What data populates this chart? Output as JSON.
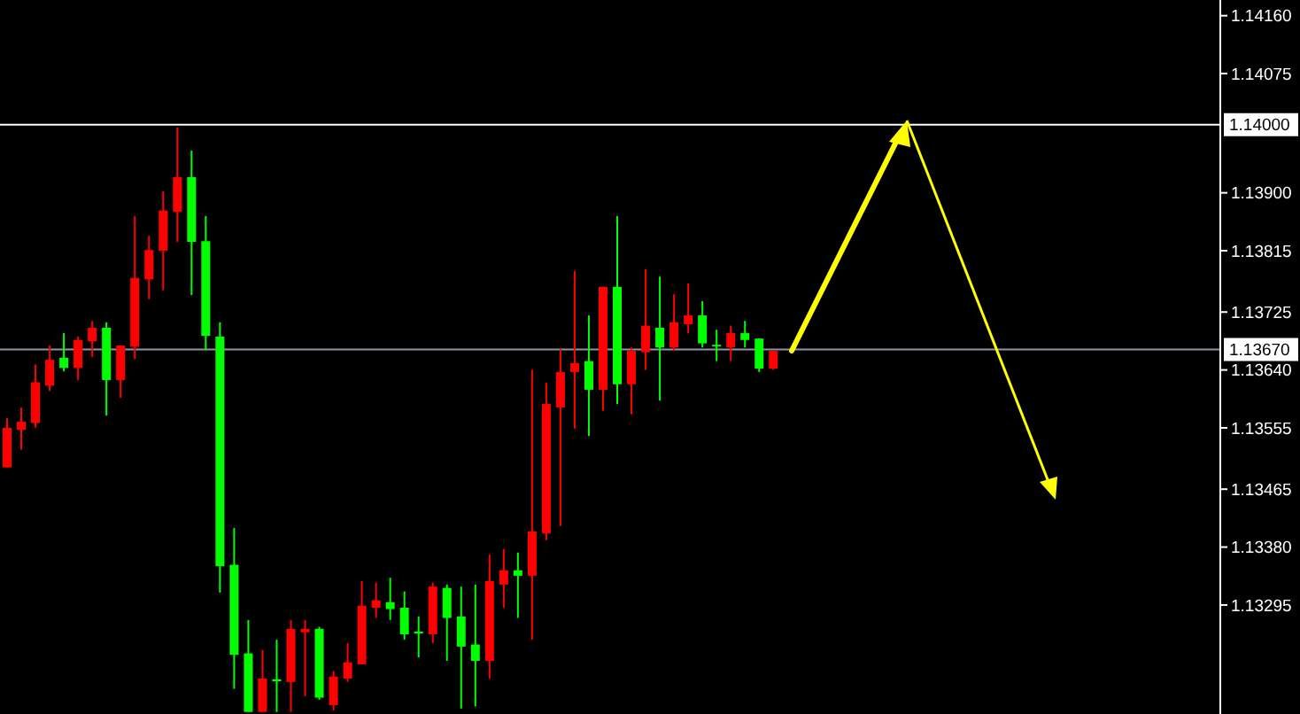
{
  "chart_data": {
    "type": "candlestick",
    "categories": [
      null,
      null,
      null,
      null,
      null,
      null,
      null,
      null,
      null,
      null,
      null,
      null,
      null,
      null,
      null,
      null,
      null,
      null,
      null,
      null,
      null,
      null,
      null,
      null,
      null,
      null,
      null,
      null,
      null,
      null,
      null,
      null,
      null,
      null,
      null,
      null,
      null,
      null,
      null,
      null,
      null,
      null,
      null,
      null,
      null,
      null,
      null,
      null,
      null,
      null,
      null,
      null,
      null,
      null,
      null,
      null,
      null,
      null,
      null,
      null,
      null,
      null,
      null,
      null,
      null,
      null,
      null,
      null,
      null,
      null,
      null,
      null,
      null,
      null,
      null,
      null,
      null,
      null,
      null,
      null,
      null,
      null,
      null,
      null,
      null,
      null
    ],
    "ohlc": [
      [
        1.13497,
        1.13569,
        1.13497,
        1.13555
      ],
      [
        1.13552,
        1.13585,
        1.13523,
        1.13564
      ],
      [
        1.13562,
        1.13648,
        1.13555,
        1.13622
      ],
      [
        1.13617,
        1.13676,
        1.13609,
        1.13655
      ],
      [
        1.13658,
        1.13694,
        1.13638,
        1.13643
      ],
      [
        1.13643,
        1.13689,
        1.13625,
        1.13684
      ],
      [
        1.13682,
        1.13712,
        1.13659,
        1.13702
      ],
      [
        1.13702,
        1.1371,
        1.13573,
        1.13625
      ],
      [
        1.13625,
        1.13676,
        1.13599,
        1.13676
      ],
      [
        1.13674,
        1.13866,
        1.13656,
        1.13775
      ],
      [
        1.13773,
        1.13837,
        1.13744,
        1.13816
      ],
      [
        1.13815,
        1.13902,
        1.13757,
        1.13874
      ],
      [
        1.13872,
        1.13996,
        1.13828,
        1.13923
      ],
      [
        1.13923,
        1.13962,
        1.1375,
        1.13828
      ],
      [
        1.13829,
        1.13866,
        1.13669,
        1.1369
      ],
      [
        1.13689,
        1.1371,
        1.13313,
        1.13352
      ],
      [
        1.13354,
        1.13408,
        1.13172,
        1.13222
      ],
      [
        1.13224,
        1.13273,
        1.13138,
        1.13138
      ],
      [
        1.13138,
        1.13229,
        1.13138,
        1.13187
      ],
      [
        1.13186,
        1.13244,
        1.13138,
        1.13183
      ],
      [
        1.13182,
        1.13273,
        1.13138,
        1.1326
      ],
      [
        1.13255,
        1.13273,
        1.13161,
        1.1326
      ],
      [
        1.1326,
        1.13263,
        1.13156,
        1.13159
      ],
      [
        1.13148,
        1.13198,
        1.1314,
        1.1319
      ],
      [
        1.13187,
        1.13239,
        1.13182,
        1.13211
      ],
      [
        1.13208,
        1.1333,
        1.13208,
        1.13294
      ],
      [
        1.13291,
        1.13328,
        1.13276,
        1.13302
      ],
      [
        1.13299,
        1.13335,
        1.13273,
        1.13289
      ],
      [
        1.13291,
        1.13315,
        1.13244,
        1.13252
      ],
      [
        1.13256,
        1.13278,
        1.13218,
        1.13253
      ],
      [
        1.13252,
        1.13328,
        1.13239,
        1.13322
      ],
      [
        1.1332,
        1.13325,
        1.13213,
        1.13276
      ],
      [
        1.13278,
        1.13322,
        1.13143,
        1.13234
      ],
      [
        1.13237,
        1.13325,
        1.13146,
        1.13213
      ],
      [
        1.13213,
        1.13369,
        1.13187,
        1.1333
      ],
      [
        1.13325,
        1.13377,
        1.13291,
        1.13346
      ],
      [
        1.13346,
        1.13372,
        1.13276,
        1.13338
      ],
      [
        1.13338,
        1.1364,
        1.13244,
        1.13403
      ],
      [
        1.134,
        1.13621,
        1.1339,
        1.1359
      ],
      [
        1.13585,
        1.13671,
        1.13411,
        1.13637
      ],
      [
        1.13637,
        1.13785,
        1.13554,
        1.1365
      ],
      [
        1.13653,
        1.1372,
        1.13543,
        1.13611
      ],
      [
        1.13611,
        1.13762,
        1.1358,
        1.13762
      ],
      [
        1.13762,
        1.13866,
        1.1359,
        1.13619
      ],
      [
        1.13619,
        1.13673,
        1.13575,
        1.13668
      ],
      [
        1.13666,
        1.13788,
        1.1364,
        1.13705
      ],
      [
        1.13702,
        1.13777,
        1.13595,
        1.13673
      ],
      [
        1.13673,
        1.13751,
        1.13668,
        1.1371
      ],
      [
        1.13707,
        1.13767,
        1.13694,
        1.1372
      ],
      [
        1.1372,
        1.13741,
        1.13673,
        1.13679
      ],
      [
        1.13677,
        1.13699,
        1.13653,
        1.13675
      ],
      [
        1.13673,
        1.13705,
        1.13653,
        1.13694
      ],
      [
        1.13694,
        1.13712,
        1.13673,
        1.13684
      ],
      [
        1.13686,
        1.13686,
        1.13637,
        1.13642
      ],
      [
        1.13642,
        1.13668,
        1.1364,
        1.13668
      ],
      null,
      null,
      null,
      null,
      null,
      null,
      null,
      null,
      null,
      null,
      null,
      null,
      null,
      null,
      null,
      null,
      null,
      null,
      null,
      null,
      null,
      null,
      null,
      null,
      null,
      null,
      null,
      null,
      null,
      null,
      null
    ],
    "colors": [
      "#ff0000",
      "#ff0000",
      "#ff0000",
      "#ff0000",
      "#00ff00",
      "#ff0000",
      "#ff0000",
      "#00ff00",
      "#ff0000",
      "#ff0000",
      "#ff0000",
      "#ff0000",
      "#ff0000",
      "#00ff00",
      "#00ff00",
      "#00ff00",
      "#00ff00",
      "#00ff00",
      "#ff0000",
      "#00ff00",
      "#ff0000",
      "#ff0000",
      "#00ff00",
      "#ff0000",
      "#ff0000",
      "#ff0000",
      "#ff0000",
      "#00ff00",
      "#00ff00",
      "#00ff00",
      "#ff0000",
      "#00ff00",
      "#00ff00",
      "#00ff00",
      "#ff0000",
      "#ff0000",
      "#00ff00",
      "#ff0000",
      "#ff0000",
      "#ff0000",
      "#ff0000",
      "#00ff00",
      "#ff0000",
      "#00ff00",
      "#ff0000",
      "#ff0000",
      "#00ff00",
      "#ff0000",
      "#ff0000",
      "#00ff00",
      "#00ff00",
      "#ff0000",
      "#00ff00",
      "#00ff00",
      "#ff0000",
      null,
      null,
      null,
      null,
      null,
      null,
      null,
      null,
      null,
      null,
      null,
      null,
      null,
      null,
      null,
      null,
      null,
      null,
      null,
      null,
      null,
      null,
      null,
      null,
      null,
      null,
      null,
      null,
      null,
      null,
      null
    ],
    "ylim": [
      1.13135,
      1.14183
    ],
    "yticks": [
      {
        "value": 1.1416,
        "label": "1.14160"
      },
      {
        "value": 1.14075,
        "label": "1.14075"
      },
      {
        "value": 1.139,
        "label": "1.13900"
      },
      {
        "value": 1.13815,
        "label": "1.13815"
      },
      {
        "value": 1.13725,
        "label": "1.13725"
      },
      {
        "value": 1.1364,
        "label": "1.13640"
      },
      {
        "value": 1.13555,
        "label": "1.13555"
      },
      {
        "value": 1.13465,
        "label": "1.13465"
      },
      {
        "value": 1.1338,
        "label": "1.13380"
      },
      {
        "value": 1.13295,
        "label": "1.13295"
      }
    ],
    "ref_lines": [
      {
        "axis": "y",
        "value": 1.14,
        "label": "1.14000",
        "color": "#ffffff"
      },
      {
        "axis": "y",
        "value": 1.1367,
        "label": "1.13670",
        "color": "#8c96a8"
      }
    ],
    "grid": false
  }
}
